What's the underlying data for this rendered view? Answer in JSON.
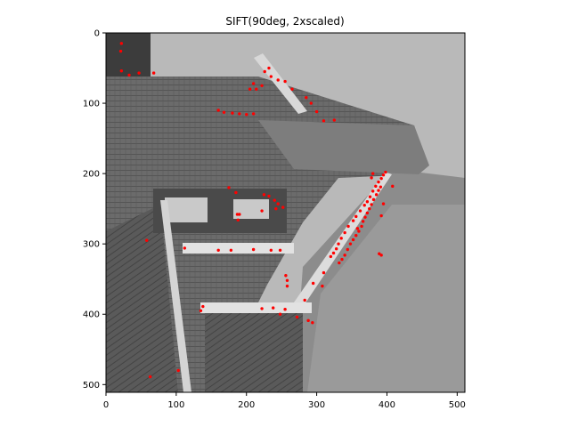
{
  "chart_data": {
    "type": "scatter",
    "title": "SIFT(90deg, 2xscaled)",
    "xlabel": "",
    "ylabel": "",
    "xlim": [
      0,
      511
    ],
    "ylim": [
      511,
      0
    ],
    "x_ticks": [
      "0",
      "100",
      "200",
      "300",
      "400",
      "500"
    ],
    "y_ticks": [
      "0",
      "100",
      "200",
      "300",
      "400",
      "500"
    ],
    "grid": false,
    "legend": "none",
    "background": "grayscale photograph of a building roof and chimney, rotated 90 degrees",
    "marker_color": "#ff0000",
    "series": [
      {
        "points": [
          [
            22,
            15
          ],
          [
            21,
            26
          ],
          [
            22,
            54
          ],
          [
            33,
            60
          ],
          [
            47,
            57
          ],
          [
            68,
            57
          ],
          [
            205,
            80
          ],
          [
            210,
            72
          ],
          [
            214,
            80
          ],
          [
            222,
            75
          ],
          [
            226,
            55
          ],
          [
            232,
            50
          ],
          [
            235,
            62
          ],
          [
            245,
            67
          ],
          [
            255,
            69
          ],
          [
            265,
            80
          ],
          [
            285,
            92
          ],
          [
            292,
            100
          ],
          [
            300,
            112
          ],
          [
            310,
            125
          ],
          [
            325,
            124
          ],
          [
            160,
            110
          ],
          [
            168,
            113
          ],
          [
            180,
            114
          ],
          [
            190,
            115
          ],
          [
            200,
            116
          ],
          [
            210,
            115
          ],
          [
            175,
            220
          ],
          [
            185,
            227
          ],
          [
            187,
            258
          ],
          [
            190,
            258
          ],
          [
            188,
            266
          ],
          [
            225,
            230
          ],
          [
            222,
            253
          ],
          [
            232,
            232
          ],
          [
            240,
            238
          ],
          [
            242,
            250
          ],
          [
            245,
            243
          ],
          [
            252,
            248
          ],
          [
            58,
            295
          ],
          [
            112,
            306
          ],
          [
            160,
            309
          ],
          [
            178,
            309
          ],
          [
            210,
            308
          ],
          [
            235,
            309
          ],
          [
            248,
            309
          ],
          [
            256,
            345
          ],
          [
            258,
            352
          ],
          [
            258,
            360
          ],
          [
            295,
            356
          ],
          [
            308,
            360
          ],
          [
            310,
            341
          ],
          [
            135,
            395
          ],
          [
            138,
            389
          ],
          [
            222,
            392
          ],
          [
            238,
            391
          ],
          [
            248,
            400
          ],
          [
            255,
            393
          ],
          [
            272,
            404
          ],
          [
            283,
            380
          ],
          [
            288,
            409
          ],
          [
            294,
            412
          ],
          [
            63,
            489
          ],
          [
            103,
            480
          ],
          [
            320,
            318
          ],
          [
            324,
            313
          ],
          [
            328,
            307
          ],
          [
            331,
            300
          ],
          [
            335,
            292
          ],
          [
            340,
            284
          ],
          [
            345,
            275
          ],
          [
            352,
            267
          ],
          [
            356,
            261
          ],
          [
            362,
            253
          ],
          [
            368,
            245
          ],
          [
            372,
            240
          ],
          [
            376,
            233
          ],
          [
            380,
            225
          ],
          [
            384,
            218
          ],
          [
            388,
            212
          ],
          [
            392,
            207
          ],
          [
            395,
            202
          ],
          [
            398,
            198
          ],
          [
            332,
            327
          ],
          [
            336,
            322
          ],
          [
            340,
            316
          ],
          [
            344,
            308
          ],
          [
            348,
            300
          ],
          [
            352,
            294
          ],
          [
            356,
            288
          ],
          [
            360,
            282
          ],
          [
            364,
            275
          ],
          [
            366,
            268
          ],
          [
            369,
            262
          ],
          [
            372,
            256
          ],
          [
            375,
            250
          ],
          [
            378,
            244
          ],
          [
            381,
            237
          ],
          [
            385,
            230
          ],
          [
            388,
            224
          ],
          [
            391,
            219
          ],
          [
            358,
            278
          ],
          [
            380,
            200
          ],
          [
            392,
            260
          ],
          [
            395,
            243
          ],
          [
            408,
            218
          ],
          [
            389,
            314
          ],
          [
            392,
            316
          ],
          [
            378,
            206
          ]
        ]
      }
    ]
  }
}
